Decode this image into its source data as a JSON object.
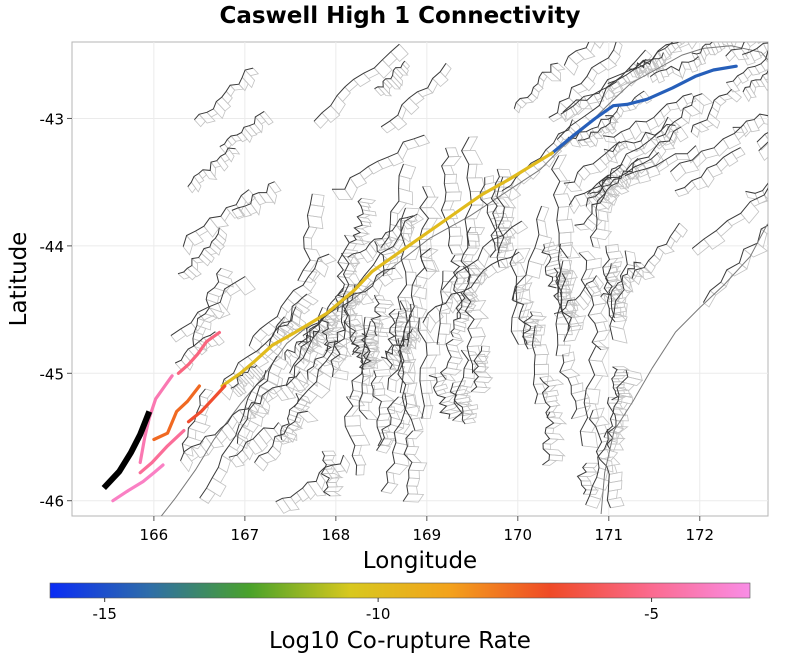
{
  "title": "Caswell High 1 Connectivity",
  "x_axis": {
    "label": "Longitude",
    "range": [
      165.1,
      172.75
    ],
    "ticks": [
      166,
      167,
      168,
      169,
      170,
      171,
      172
    ]
  },
  "y_axis": {
    "label": "Latitude",
    "range": [
      -46.12,
      -42.4
    ],
    "ticks": [
      -43,
      -44,
      -45,
      -46
    ]
  },
  "colorbar": {
    "label": "Log10 Co-rupture Rate",
    "range": [
      -16,
      -3.2
    ],
    "ticks": [
      -15,
      -10,
      -5
    ],
    "colors": [
      "#0a2cf5",
      "#2f6ea8",
      "#4aa22a",
      "#d8c81e",
      "#f3a21c",
      "#ef4a26",
      "#fb6a8e",
      "#f98de6"
    ]
  },
  "colors": {
    "fault_trace": "#3a3a3a",
    "rupture_surface": "#c2c2c2",
    "coastline": "#7a7a7a",
    "grid": "#ebebeb",
    "source_fault": "#000000"
  },
  "chart_data": {
    "type": "map",
    "grid": true,
    "source_fault": {
      "rate": null,
      "points": [
        [
          165.45,
          -45.9
        ],
        [
          165.62,
          -45.77
        ],
        [
          165.75,
          -45.62
        ],
        [
          165.85,
          -45.48
        ],
        [
          165.95,
          -45.3
        ]
      ]
    },
    "connected_faults": [
      {
        "rate": -14.6,
        "points": [
          [
            170.38,
            -43.27
          ],
          [
            170.6,
            -43.14
          ],
          [
            170.85,
            -43.0
          ],
          [
            171.05,
            -42.9
          ],
          [
            171.2,
            -42.89
          ],
          [
            171.42,
            -42.85
          ],
          [
            171.7,
            -42.76
          ],
          [
            171.95,
            -42.67
          ],
          [
            172.15,
            -42.62
          ],
          [
            172.4,
            -42.59
          ]
        ]
      },
      {
        "rate": -9.9,
        "points": [
          [
            166.75,
            -45.1
          ],
          [
            166.95,
            -45.0
          ],
          [
            167.1,
            -44.91
          ],
          [
            167.3,
            -44.78
          ],
          [
            167.55,
            -44.68
          ],
          [
            167.9,
            -44.53
          ],
          [
            168.2,
            -44.35
          ],
          [
            168.4,
            -44.2
          ],
          [
            168.7,
            -44.05
          ],
          [
            169.0,
            -43.9
          ],
          [
            169.3,
            -43.75
          ],
          [
            169.6,
            -43.6
          ],
          [
            169.9,
            -43.48
          ],
          [
            170.15,
            -43.37
          ],
          [
            170.38,
            -43.27
          ]
        ]
      },
      {
        "rate": -7.5,
        "points": [
          [
            166.0,
            -45.52
          ],
          [
            166.15,
            -45.47
          ],
          [
            166.25,
            -45.3
          ],
          [
            166.37,
            -45.22
          ],
          [
            166.5,
            -45.1
          ]
        ]
      },
      {
        "rate": -6.7,
        "points": [
          [
            166.38,
            -45.38
          ],
          [
            166.52,
            -45.3
          ],
          [
            166.65,
            -45.2
          ],
          [
            166.78,
            -45.1
          ]
        ]
      },
      {
        "rate": -5.3,
        "points": [
          [
            166.27,
            -45.0
          ],
          [
            166.38,
            -44.93
          ],
          [
            166.48,
            -44.85
          ],
          [
            166.58,
            -44.75
          ],
          [
            166.72,
            -44.68
          ]
        ]
      },
      {
        "rate": -4.8,
        "points": [
          [
            166.33,
            -45.45
          ],
          [
            166.15,
            -45.57
          ],
          [
            165.98,
            -45.7
          ],
          [
            165.85,
            -45.78
          ]
        ]
      },
      {
        "rate": -4.3,
        "points": [
          [
            165.85,
            -45.7
          ],
          [
            165.9,
            -45.5
          ],
          [
            165.95,
            -45.35
          ],
          [
            166.02,
            -45.2
          ],
          [
            166.12,
            -45.1
          ],
          [
            166.2,
            -45.02
          ]
        ]
      },
      {
        "rate": -3.9,
        "points": [
          [
            165.55,
            -46.0
          ],
          [
            165.72,
            -45.92
          ],
          [
            165.88,
            -45.85
          ],
          [
            166.0,
            -45.78
          ],
          [
            166.1,
            -45.72
          ]
        ]
      }
    ]
  }
}
